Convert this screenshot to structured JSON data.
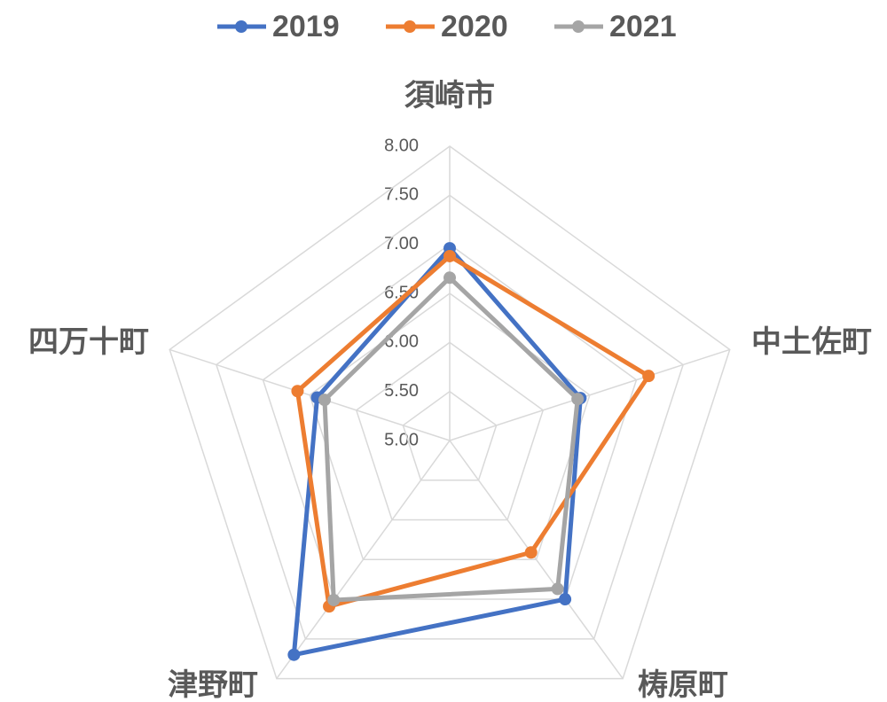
{
  "chart_data": {
    "type": "radar",
    "categories": [
      "須崎市",
      "中土佐町",
      "梼原町",
      "津野町",
      "四万十町"
    ],
    "series": [
      {
        "name": "2019",
        "color": "#4472c4",
        "values": [
          6.96,
          6.4,
          7.0,
          7.7,
          6.42
        ]
      },
      {
        "name": "2020",
        "color": "#ed7d31",
        "values": [
          6.88,
          7.13,
          6.41,
          7.09,
          6.63
        ]
      },
      {
        "name": "2021",
        "color": "#a5a5a5",
        "values": [
          6.66,
          6.37,
          6.87,
          7.01,
          6.34
        ]
      }
    ],
    "ylim": [
      5,
      8
    ],
    "yticks": [
      {
        "value": 5,
        "label": "5.00"
      },
      {
        "value": 5.5,
        "label": "5.50"
      },
      {
        "value": 6,
        "label": "6.00"
      },
      {
        "value": 6.5,
        "label": "6.50"
      },
      {
        "value": 7,
        "label": "7.00"
      },
      {
        "value": 7.5,
        "label": "7.50"
      },
      {
        "value": 8,
        "label": "8.00"
      }
    ],
    "grid": true
  }
}
